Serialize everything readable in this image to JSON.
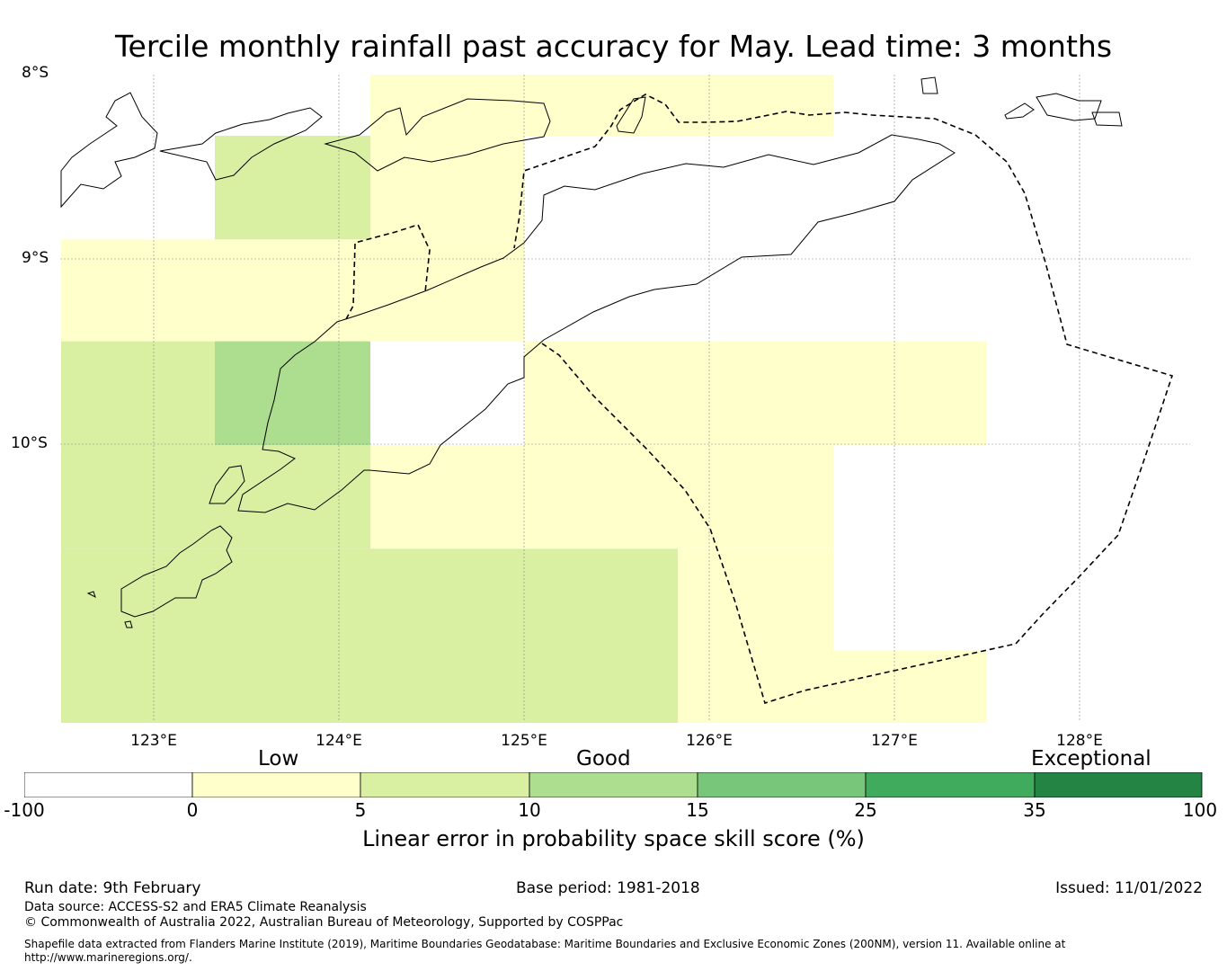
{
  "title": "Tercile monthly rainfall past accuracy for May. Lead time: 3 months",
  "map": {
    "lat_labels": [
      "8°S",
      "9°S",
      "10°S"
    ],
    "lon_labels": [
      "123°E",
      "124°E",
      "125°E",
      "126°E",
      "127°E",
      "128°E"
    ],
    "region": {
      "lon_range": [
        122.5,
        128.6
      ],
      "lat_range": [
        -11.5,
        -8.0
      ]
    },
    "grid_cells": [
      {
        "lon0": 124.17,
        "lon1": 126.67,
        "lat0": -8.0,
        "lat1": -8.33,
        "category": "0-5"
      },
      {
        "lon0": 124.17,
        "lon1": 125.0,
        "lat0": -8.33,
        "lat1": -8.89,
        "category": "0-5"
      },
      {
        "lon0": 123.33,
        "lon1": 124.17,
        "lat0": -8.33,
        "lat1": -8.89,
        "category": "5-10"
      },
      {
        "lon0": 122.5,
        "lon1": 125.0,
        "lat0": -8.89,
        "lat1": -9.44,
        "category": "0-5"
      },
      {
        "lon0": 122.5,
        "lon1": 123.33,
        "lat0": -9.44,
        "lat1": -10.0,
        "category": "5-10"
      },
      {
        "lon0": 123.33,
        "lon1": 124.17,
        "lat0": -9.44,
        "lat1": -10.0,
        "category": "10-15"
      },
      {
        "lon0": 125.0,
        "lon1": 127.5,
        "lat0": -9.44,
        "lat1": -10.0,
        "category": "0-5"
      },
      {
        "lon0": 122.5,
        "lon1": 124.17,
        "lat0": -10.0,
        "lat1": -10.56,
        "category": "5-10"
      },
      {
        "lon0": 124.17,
        "lon1": 126.67,
        "lat0": -10.0,
        "lat1": -10.56,
        "category": "0-5"
      },
      {
        "lon0": 122.5,
        "lon1": 125.83,
        "lat0": -10.56,
        "lat1": -11.5,
        "category": "5-10"
      },
      {
        "lon0": 125.83,
        "lon1": 126.67,
        "lat0": -10.56,
        "lat1": -11.5,
        "category": "0-5"
      },
      {
        "lon0": 126.67,
        "lon1": 127.5,
        "lat0": -11.11,
        "lat1": -11.5,
        "category": "0-5"
      }
    ],
    "colors": {
      "-100-0": "#ffffff",
      "0-5": "#ffffcc",
      "5-10": "#d9f0a3",
      "10-15": "#addd8e",
      "15-25": "#78c679",
      "25-35": "#41ab5d",
      "35-100": "#238443"
    }
  },
  "legend": {
    "categories": [
      "Low",
      "Good",
      "Exceptional"
    ],
    "ticks": [
      "-100",
      "0",
      "5",
      "10",
      "15",
      "25",
      "35",
      "100"
    ],
    "label": "Linear error in probability space skill score (%)"
  },
  "footer": {
    "run_date": "Run date: 9th February",
    "base_period": "Base period: 1981-2018",
    "issued": "Issued: 11/01/2022",
    "data_source": "Data source: ACCESS-S2 and ERA5 Climate Reanalysis",
    "copyright": "© Commonwealth of Australia 2022, Australian Bureau of Meteorology, Supported by COSPPac",
    "shapefile": "Shapefile data extracted from Flanders Marine Institute (2019), Maritime Boundaries Geodatabase: Maritime Boundaries and Exclusive Economic Zones (200NM), version 11. Available online at http://www.marineregions.org/."
  }
}
